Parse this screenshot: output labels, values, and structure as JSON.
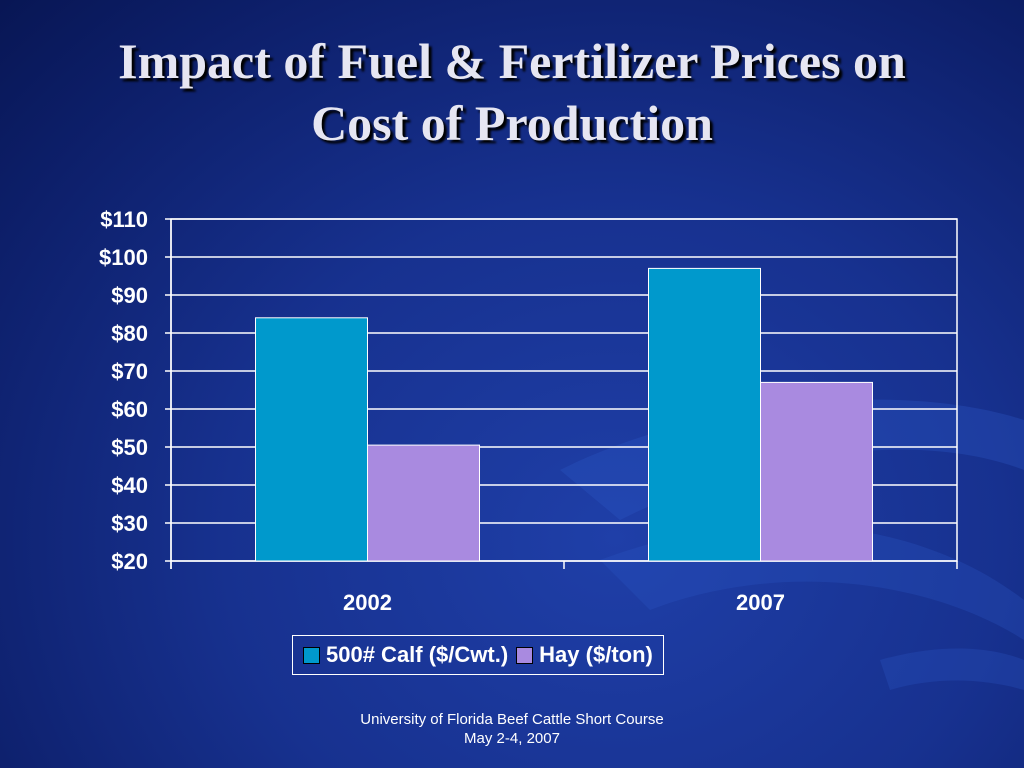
{
  "title_line1": "Impact of Fuel & Fertilizer Prices on",
  "title_line2": "Cost of Production",
  "chart_data": {
    "type": "bar",
    "categories": [
      "2002",
      "2007"
    ],
    "series": [
      {
        "name": "500# Calf ($/Cwt.)",
        "values": [
          84,
          97
        ],
        "color": "#0099cc"
      },
      {
        "name": "Hay ($/ton)",
        "values": [
          50.5,
          67
        ],
        "color": "#a98ae0"
      }
    ],
    "ylim": [
      20,
      110
    ],
    "yticks": [
      "$20",
      "$30",
      "$40",
      "$50",
      "$60",
      "$70",
      "$80",
      "$90",
      "$100",
      "$110"
    ],
    "grid": true,
    "legend": "bottom",
    "xlabel": "",
    "ylabel": ""
  },
  "footer": {
    "line1": "University of Florida Beef Cattle Short Course",
    "line2": "May 2-4, 2007"
  }
}
